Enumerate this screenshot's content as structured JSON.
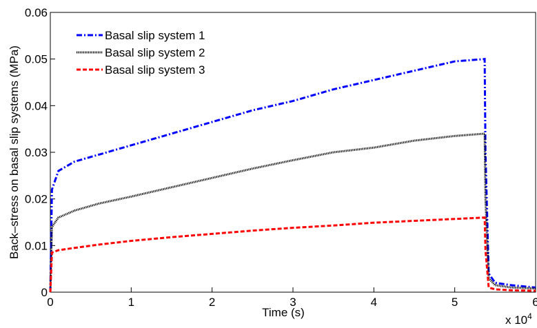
{
  "chart_data": {
    "type": "line",
    "x_label": "Time (s)",
    "y_label": "Back–stress on basal slip systems (MPa)",
    "x_multiplier": {
      "base": "x 10",
      "exponent": "4"
    },
    "x": [
      0,
      0.02,
      0.1,
      0.3,
      0.6,
      1,
      1.5,
      2,
      2.5,
      3,
      3.5,
      4,
      4.5,
      5,
      5.37,
      5.38,
      5.42,
      5.5,
      5.7,
      6
    ],
    "series": [
      {
        "name": "Basal slip system 1",
        "color": "#0000ff",
        "style": "dashdot",
        "values": [
          0,
          0.022,
          0.026,
          0.028,
          0.0295,
          0.0315,
          0.034,
          0.0365,
          0.039,
          0.041,
          0.0435,
          0.0455,
          0.0475,
          0.0495,
          0.05,
          0.03,
          0.004,
          0.002,
          0.0015,
          0.001
        ]
      },
      {
        "name": "Basal slip system 2",
        "color": "#000000",
        "style": "dotted",
        "values": [
          0,
          0.014,
          0.016,
          0.0175,
          0.019,
          0.0205,
          0.0225,
          0.0245,
          0.0265,
          0.0283,
          0.03,
          0.031,
          0.0325,
          0.0335,
          0.034,
          0.02,
          0.003,
          0.0015,
          0.001,
          0.0008
        ]
      },
      {
        "name": "Basal slip system 3",
        "color": "#ff0000",
        "style": "dashed",
        "values": [
          0,
          0.0085,
          0.009,
          0.0095,
          0.0102,
          0.011,
          0.0118,
          0.0125,
          0.0132,
          0.0138,
          0.0143,
          0.0149,
          0.0153,
          0.0157,
          0.016,
          0.009,
          0.001,
          0.0006,
          0.0004,
          0.0003
        ]
      }
    ],
    "xlim": [
      0,
      6
    ],
    "xticks": [
      0,
      1,
      2,
      3,
      4,
      5,
      6
    ],
    "ylim": [
      0,
      0.06
    ],
    "yticks": [
      0,
      0.01,
      0.02,
      0.03,
      0.04,
      0.05,
      0.06
    ],
    "grid": false,
    "legend": "top-left"
  }
}
